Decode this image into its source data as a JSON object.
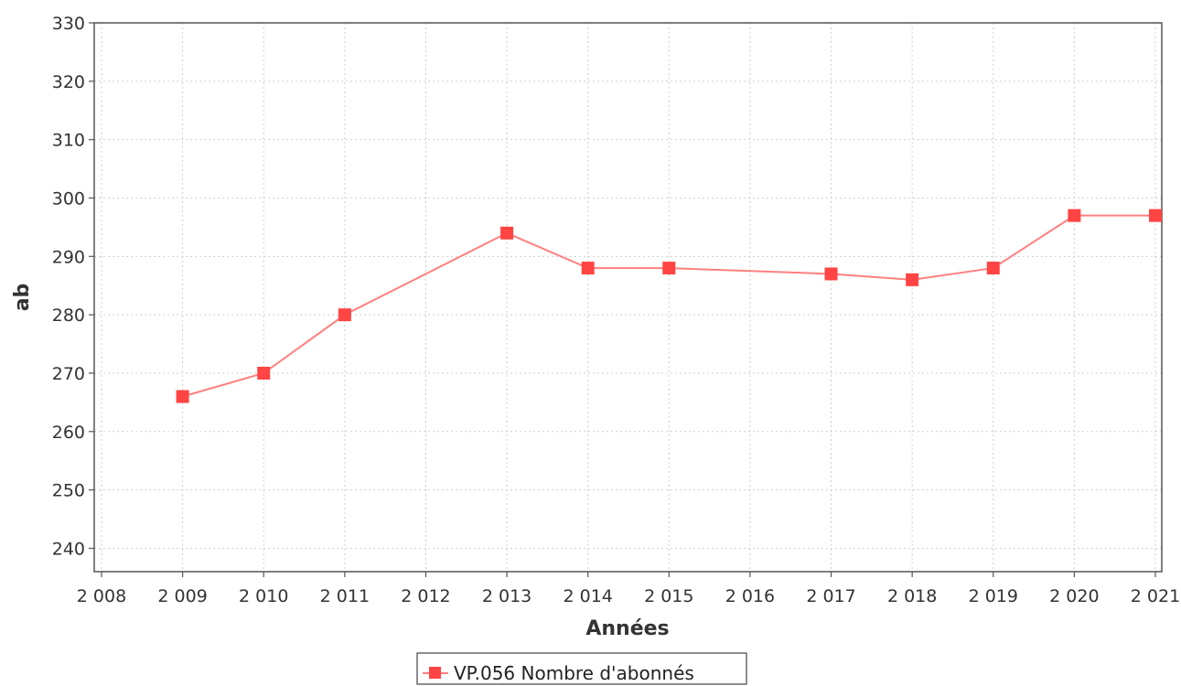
{
  "chart_data": {
    "type": "line",
    "title": "",
    "xlabel": "Années",
    "ylabel": "ab",
    "xlim": [
      2008,
      2021
    ],
    "ylim": [
      236,
      330
    ],
    "x_ticks": [
      2008,
      2009,
      2010,
      2011,
      2012,
      2013,
      2014,
      2015,
      2016,
      2017,
      2018,
      2019,
      2020,
      2021
    ],
    "x_tick_labels": [
      "2 008",
      "2 009",
      "2 010",
      "2 011",
      "2 012",
      "2 013",
      "2 014",
      "2 015",
      "2 016",
      "2 017",
      "2 018",
      "2 019",
      "2 020",
      "2 021"
    ],
    "y_ticks": [
      240,
      250,
      260,
      270,
      280,
      290,
      300,
      310,
      320,
      330
    ],
    "y_tick_labels": [
      "240",
      "250",
      "260",
      "270",
      "280",
      "290",
      "300",
      "310",
      "320",
      "330"
    ],
    "grid": true,
    "legend_position": "bottom-center",
    "series": [
      {
        "name": "VP.056 Nombre d'abonnés",
        "color": "#ff4444",
        "line_color": "#ff8080",
        "marker": "square",
        "points": [
          {
            "x": 2009,
            "y": 266
          },
          {
            "x": 2010,
            "y": 270
          },
          {
            "x": 2011,
            "y": 280
          },
          {
            "x": 2013,
            "y": 294
          },
          {
            "x": 2014,
            "y": 288
          },
          {
            "x": 2015,
            "y": 288
          },
          {
            "x": 2017,
            "y": 287
          },
          {
            "x": 2018,
            "y": 286
          },
          {
            "x": 2019,
            "y": 288
          },
          {
            "x": 2020,
            "y": 297
          },
          {
            "x": 2021,
            "y": 297
          }
        ]
      }
    ]
  }
}
